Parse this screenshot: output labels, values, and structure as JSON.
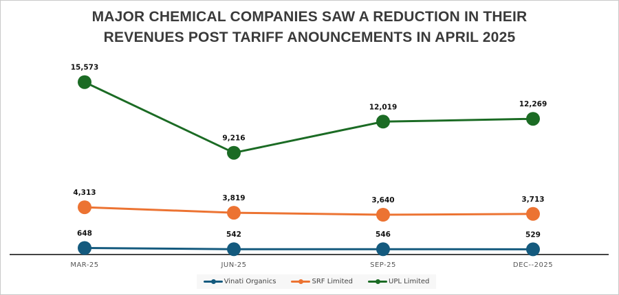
{
  "chart_data": {
    "type": "line",
    "title": "MAJOR CHEMICAL COMPANIES SAW A REDUCTION IN THEIR REVENUES POST TARIFF ANOUNCEMENTS IN APRIL 2025",
    "title_lines": [
      "MAJOR CHEMICAL COMPANIES SAW A REDUCTION IN THEIR",
      "REVENUES POST TARIFF ANOUNCEMENTS IN APRIL 2025"
    ],
    "xlabel": "",
    "ylabel": "",
    "categories": [
      "MAR-25",
      "JUN-25",
      "SEP-25",
      "DEC--2025"
    ],
    "ylim": [
      0,
      18000
    ],
    "grid": false,
    "legend_position": "bottom",
    "series": [
      {
        "name": "Vinati Organics",
        "color": "#145a7e",
        "values": [
          648,
          542,
          546,
          529
        ],
        "labels": [
          "648",
          "542",
          "546",
          "529"
        ]
      },
      {
        "name": "SRF Limited",
        "color": "#ec7332",
        "values": [
          4313,
          3819,
          3640,
          3713
        ],
        "labels": [
          "4,313",
          "3,819",
          "3,640",
          "3,713"
        ]
      },
      {
        "name": "UPL Limited",
        "color": "#1b6b24",
        "values": [
          15573,
          9216,
          12019,
          12269
        ],
        "labels": [
          "15,573",
          "9,216",
          "12,019",
          "12,269"
        ]
      }
    ]
  }
}
